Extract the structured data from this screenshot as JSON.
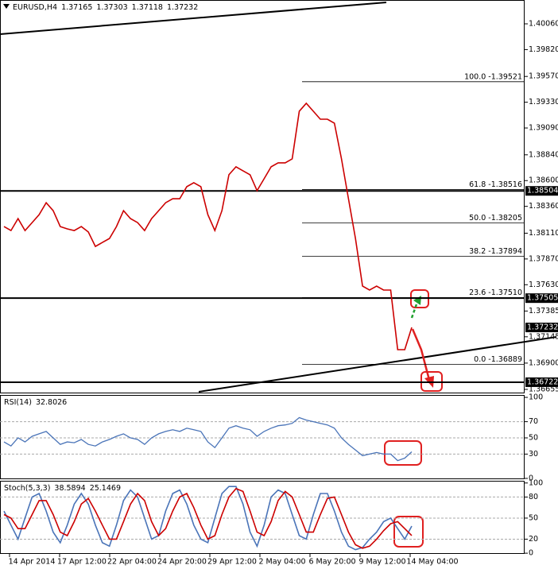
{
  "chart_data": [
    {
      "type": "line",
      "title": "EURUSD,H4",
      "header_values": [
        1.37165,
        1.37303,
        1.37118,
        1.37232
      ],
      "color": "#cc0000",
      "values": [
        1.38172,
        1.38135,
        1.38246,
        1.38135,
        1.38209,
        1.38283,
        1.38394,
        1.3832,
        1.38172,
        1.3815,
        1.38135,
        1.38172,
        1.38121,
        1.37987,
        1.38024,
        1.38061,
        1.38172,
        1.3832,
        1.38246,
        1.38209,
        1.38135,
        1.38246,
        1.3832,
        1.38394,
        1.38431,
        1.38431,
        1.38543,
        1.3858,
        1.38543,
        1.38283,
        1.38135,
        1.3832,
        1.38654,
        1.38728,
        1.38691,
        1.38654,
        1.38506,
        1.38617,
        1.38728,
        1.38765,
        1.38765,
        1.38802,
        1.39246,
        1.3932,
        1.39246,
        1.39172,
        1.39172,
        1.39135,
        1.38802,
        1.38431,
        1.38061,
        1.37617,
        1.3758,
        1.37617,
        1.3758,
        1.3758,
        1.37025,
        1.37025,
        1.37232
      ],
      "ylim": [
        1.36618,
        1.40282
      ],
      "yticks": [
        {
          "value": 1.4006,
          "label": "1.40060"
        },
        {
          "value": 1.3982,
          "label": "1.39820"
        },
        {
          "value": 1.3957,
          "label": "1.39570"
        },
        {
          "value": 1.3933,
          "label": "1.39330"
        },
        {
          "value": 1.3909,
          "label": "1.39090"
        },
        {
          "value": 1.3884,
          "label": "1.38840"
        },
        {
          "value": 1.386,
          "label": "1.38600"
        },
        {
          "value": 1.3836,
          "label": "1.38360"
        },
        {
          "value": 1.3811,
          "label": "1.38110"
        },
        {
          "value": 1.3787,
          "label": "1.37870"
        },
        {
          "value": 1.3763,
          "label": "1.37630"
        },
        1.37385,
        1.37145,
        {
          "value": 1.369,
          "label": "1.36900"
        },
        1.36655
      ],
      "levels": [
        1.38504,
        1.37505,
        1.36722
      ],
      "fibonacci": [
        {
          "label": "100.0 -1.39521",
          "value": 1.39521
        },
        {
          "label": "61.8 -1.38516",
          "value": 1.38516
        },
        {
          "label": "50.0 -1.38205",
          "value": 1.38205
        },
        {
          "label": "38.2 -1.37894",
          "value": 1.37894
        },
        {
          "label": "23.6 -1.37510",
          "value": 1.3751
        },
        {
          "label": "0.0 -1.36889",
          "value": 1.36889
        }
      ]
    },
    {
      "type": "line",
      "title": "RSI(14)",
      "color": "#4a74b8",
      "values": [
        45,
        40,
        50,
        45,
        52,
        55,
        58,
        50,
        42,
        45,
        44,
        48,
        42,
        40,
        45,
        48,
        52,
        55,
        50,
        48,
        42,
        50,
        55,
        58,
        60,
        58,
        62,
        60,
        58,
        45,
        38,
        50,
        62,
        65,
        62,
        60,
        52,
        58,
        62,
        65,
        66,
        68,
        75,
        72,
        70,
        68,
        66,
        62,
        50,
        42,
        35,
        28,
        30,
        32,
        30,
        30,
        22,
        25,
        32.8026
      ],
      "ylim": [
        -1,
        102
      ],
      "yticks": [
        100,
        70,
        50,
        30,
        0
      ],
      "grid": true
    },
    {
      "type": "line",
      "title": "Stoch(5,3,3)",
      "series": [
        {
          "color": "#4a74b8",
          "values": [
            60,
            40,
            20,
            50,
            80,
            85,
            60,
            30,
            15,
            40,
            70,
            85,
            70,
            40,
            15,
            10,
            40,
            75,
            90,
            80,
            50,
            20,
            25,
            60,
            85,
            90,
            70,
            40,
            20,
            15,
            50,
            85,
            95,
            95,
            70,
            30,
            10,
            40,
            80,
            90,
            85,
            55,
            25,
            20,
            55,
            85,
            85,
            60,
            30,
            10,
            5,
            8,
            20,
            30,
            45,
            50,
            35,
            20,
            38.5894
          ]
        },
        {
          "color": "#cc0000",
          "values": [
            55,
            50,
            35,
            35,
            55,
            75,
            75,
            55,
            30,
            25,
            45,
            70,
            78,
            60,
            40,
            20,
            20,
            45,
            70,
            85,
            75,
            45,
            25,
            35,
            60,
            80,
            85,
            65,
            40,
            20,
            25,
            55,
            80,
            92,
            88,
            60,
            30,
            25,
            45,
            75,
            88,
            80,
            55,
            30,
            30,
            55,
            78,
            80,
            55,
            30,
            12,
            7,
            10,
            20,
            32,
            42,
            45,
            35,
            25.1469
          ]
        }
      ],
      "ylim": [
        -1,
        102
      ],
      "yticks": [
        100,
        80,
        50,
        20,
        0
      ],
      "grid": true
    }
  ],
  "time_axis_labels": [
    "14 Apr 2014",
    "17 Apr 12:00",
    "22 Apr 04:00",
    "24 Apr 20:00",
    "29 Apr 12:00",
    "2 May 04:00",
    "6 May 20:00",
    "9 May 12:00",
    "14 May 04:00"
  ]
}
